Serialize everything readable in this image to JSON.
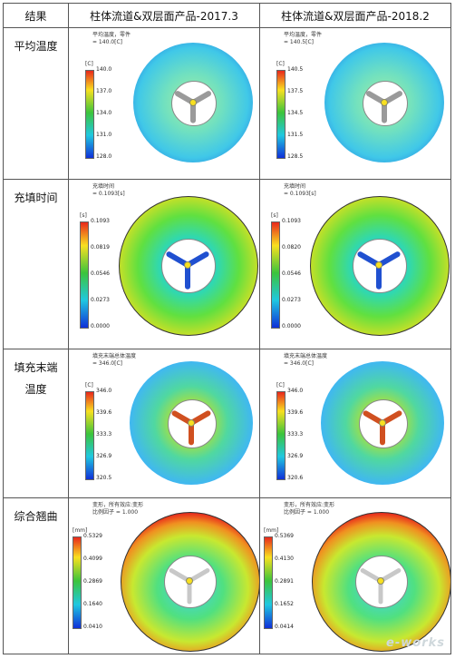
{
  "header": {
    "col0": "结果",
    "col1": "柱体流道&双层面产品-2017.3",
    "col2": "柱体流道&双层面产品-2018.2"
  },
  "rows": [
    {
      "label": "平均温度",
      "left": {
        "title": "平均温度，零件\n= 140.0[C]",
        "unit": "[C]",
        "ticks": [
          "140.0",
          "137.0",
          "134.0",
          "131.0",
          "128.0"
        ]
      },
      "right": {
        "title": "平均温度，零件\n= 140.5[C]",
        "unit": "[C]",
        "ticks": [
          "140.5",
          "137.5",
          "134.5",
          "131.5",
          "128.5"
        ]
      }
    },
    {
      "label": "充填时间",
      "left": {
        "title": "充填时间\n= 0.1093[s]",
        "unit": "[s]",
        "ticks": [
          "0.1093",
          "0.0819",
          "0.0546",
          "0.0273",
          "0.0000"
        ]
      },
      "right": {
        "title": "充填时间\n= 0.1093[s]",
        "unit": "[s]",
        "ticks": [
          "0.1093",
          "0.0820",
          "0.0546",
          "0.0273",
          "0.0000"
        ]
      }
    },
    {
      "label": "填充末端温度",
      "left": {
        "title": "填充末端总体温度\n= 346.0[C]",
        "unit": "[C]",
        "ticks": [
          "346.0",
          "339.6",
          "333.3",
          "326.9",
          "320.5"
        ]
      },
      "right": {
        "title": "填充末端总体温度\n= 346.0[C]",
        "unit": "[C]",
        "ticks": [
          "346.0",
          "339.6",
          "333.3",
          "326.9",
          "320.6"
        ]
      }
    },
    {
      "label": "综合翘曲",
      "left": {
        "title": "变形，所有效应:变形\n比例因子 = 1.000",
        "unit": "[mm]",
        "ticks": [
          "0.5329",
          "0.4099",
          "0.2869",
          "0.1640",
          "0.0410"
        ]
      },
      "right": {
        "title": "变形，所有效应:变形\n比例因子 = 1.000",
        "unit": "[mm]",
        "ticks": [
          "0.5369",
          "0.4130",
          "0.2891",
          "0.1652",
          "0.0414"
        ]
      }
    }
  ],
  "watermark": "e-works",
  "colors": {
    "red": "#e8281c",
    "green": "#3cc43c",
    "cyan": "#20c8e0",
    "blue": "#1030d8"
  }
}
